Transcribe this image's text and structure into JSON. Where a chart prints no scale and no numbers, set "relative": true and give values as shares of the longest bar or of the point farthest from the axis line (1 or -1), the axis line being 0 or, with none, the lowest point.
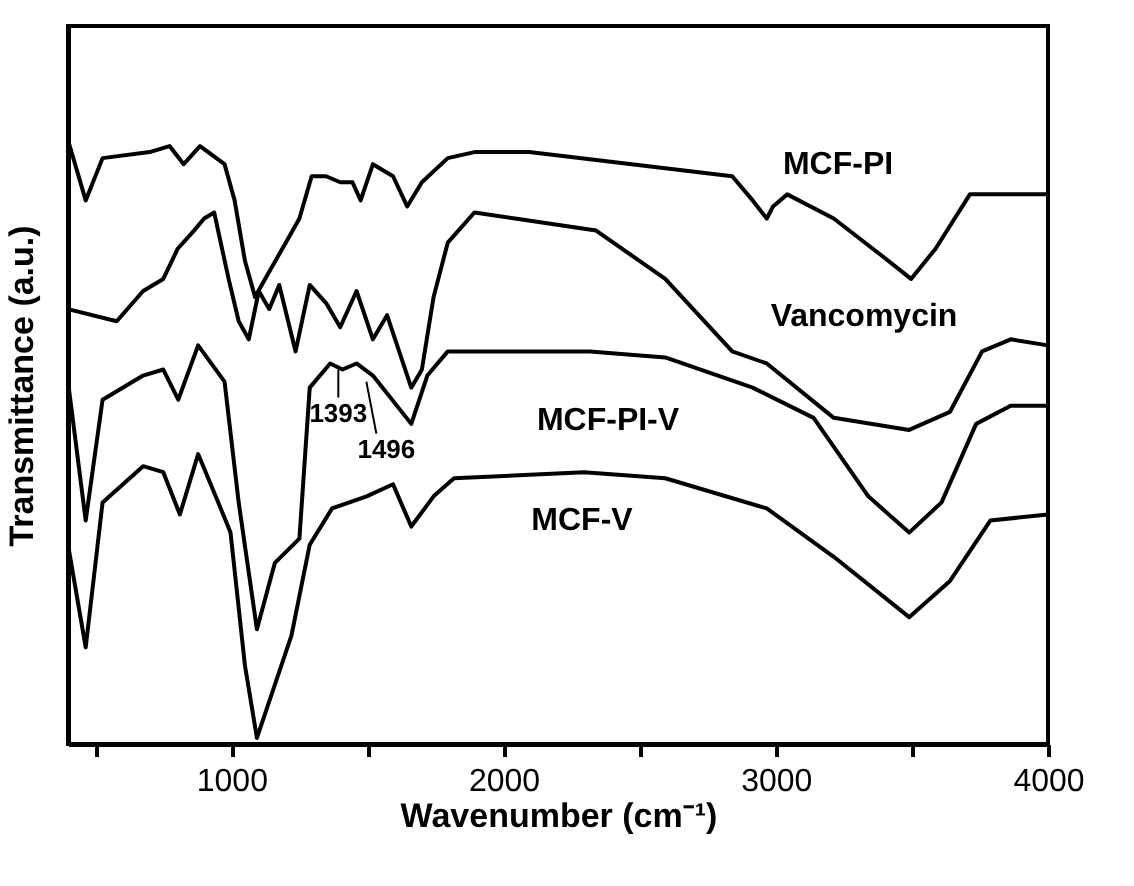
{
  "chart_data": {
    "type": "line",
    "relative": true,
    "xlabel": "Wavenumber (cm⁻¹)",
    "ylabel": "Transmittance (a.u.)",
    "xlim": [
      400,
      4000
    ],
    "xticks": [
      {
        "value": 500,
        "label": null
      },
      1000,
      {
        "value": 1500,
        "label": null
      },
      2000,
      {
        "value": 2500,
        "label": null
      },
      3000,
      {
        "value": 3500,
        "label": null
      },
      4000
    ],
    "grid": false,
    "legend": false,
    "marker": "none",
    "line_style": "solid",
    "series": [
      {
        "name": "MCF-PI",
        "color": "#000000",
        "x": [
          400,
          465,
          527,
          700,
          773,
          825,
          885,
          975,
          1012,
          1050,
          1087,
          1124,
          1200,
          1250,
          1295,
          1348,
          1400,
          1445,
          1475,
          1520,
          1594,
          1646,
          1700,
          1795,
          1893,
          2094,
          2840,
          2915,
          2967,
          2990,
          3042,
          3213,
          3385,
          3497,
          3587,
          3713,
          3833,
          4000
        ],
        "values": [
          1.0,
          0.9,
          0.97,
          0.98,
          0.99,
          0.96,
          0.99,
          0.96,
          0.9,
          0.8,
          0.74,
          0.77,
          0.83,
          0.87,
          0.94,
          0.94,
          0.93,
          0.93,
          0.9,
          0.96,
          0.94,
          0.89,
          0.93,
          0.97,
          0.98,
          0.98,
          0.94,
          0.9,
          0.87,
          0.89,
          0.91,
          0.87,
          0.81,
          0.77,
          0.82,
          0.91,
          0.91,
          0.91
        ]
      },
      {
        "name": "Vancomycin",
        "color": "#000000",
        "x": [
          400,
          579,
          676,
          750,
          803,
          863,
          900,
          937,
          990,
          1027,
          1064,
          1101,
          1139,
          1176,
          1236,
          1288,
          1348,
          1400,
          1460,
          1520,
          1572,
          1661,
          1700,
          1743,
          1795,
          1893,
          2042,
          2340,
          2594,
          2840,
          2967,
          3213,
          3490,
          3640,
          3758,
          3863,
          4000
        ],
        "values": [
          0.72,
          0.7,
          0.75,
          0.77,
          0.82,
          0.85,
          0.87,
          0.88,
          0.77,
          0.7,
          0.67,
          0.75,
          0.72,
          0.76,
          0.65,
          0.76,
          0.73,
          0.69,
          0.75,
          0.67,
          0.71,
          0.59,
          0.62,
          0.74,
          0.83,
          0.88,
          0.87,
          0.85,
          0.77,
          0.65,
          0.63,
          0.54,
          0.52,
          0.55,
          0.65,
          0.67,
          0.66
        ]
      },
      {
        "name": "MCF-PI-V",
        "color": "#000000",
        "x": [
          400,
          465,
          527,
          676,
          750,
          805,
          878,
          975,
          1027,
          1094,
          1160,
          1250,
          1288,
          1363,
          1408,
          1460,
          1520,
          1661,
          1720,
          1795,
          2094,
          2318,
          2594,
          2915,
          3139,
          3340,
          3490,
          3609,
          3736,
          3863,
          4000
        ],
        "values": [
          0.6,
          0.37,
          0.57,
          0.61,
          0.62,
          0.57,
          0.66,
          0.6,
          0.4,
          0.19,
          0.3,
          0.34,
          0.59,
          0.63,
          0.62,
          0.63,
          0.61,
          0.53,
          0.61,
          0.65,
          0.65,
          0.65,
          0.64,
          0.59,
          0.54,
          0.41,
          0.35,
          0.4,
          0.53,
          0.56,
          0.56
        ]
      },
      {
        "name": "MCF-V",
        "color": "#000000",
        "x": [
          400,
          465,
          527,
          676,
          750,
          811,
          878,
          952,
          997,
          1050,
          1094,
          1139,
          1221,
          1288,
          1370,
          1497,
          1594,
          1661,
          1743,
          1818,
          2296,
          2594,
          2967,
          3213,
          3490,
          3640,
          3788,
          4000
        ],
        "values": [
          0.33,
          0.16,
          0.4,
          0.46,
          0.45,
          0.38,
          0.48,
          0.4,
          0.35,
          0.13,
          0.01,
          0.07,
          0.18,
          0.33,
          0.39,
          0.41,
          0.43,
          0.36,
          0.41,
          0.44,
          0.45,
          0.44,
          0.39,
          0.31,
          0.21,
          0.27,
          0.37,
          0.38
        ]
      }
    ],
    "annotations": [
      {
        "text": "1393",
        "x": 1393,
        "y": 0.62
      },
      {
        "text": "1496",
        "x": 1496,
        "y": 0.6
      }
    ]
  }
}
